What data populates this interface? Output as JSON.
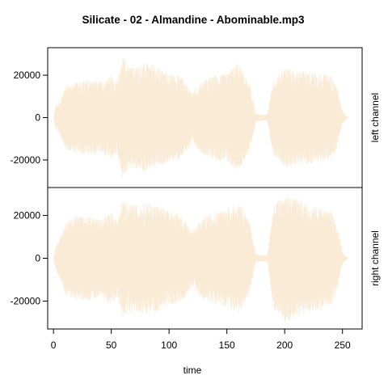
{
  "chart_data": {
    "type": "line",
    "title": "Silicate - 02 - Almandine - Abominable.mp3",
    "xlabel": "time",
    "xlim": [
      -5,
      267
    ],
    "x_ticks": [
      0,
      50,
      100,
      150,
      200,
      250
    ],
    "x_tick_labels": [
      "0",
      "50",
      "100",
      "150",
      "200",
      "250"
    ],
    "ylim": [
      -33000,
      33000
    ],
    "y_ticks": [
      -20000,
      0,
      20000
    ],
    "y_tick_labels": [
      "-20000",
      "0",
      "20000"
    ],
    "grid": false,
    "color": "#FAEBD7",
    "panels": [
      {
        "ylabel": "left channel",
        "envelope_time": [
          0,
          2,
          5,
          10,
          20,
          30,
          40,
          50,
          55,
          60,
          65,
          70,
          80,
          90,
          100,
          110,
          120,
          130,
          140,
          150,
          160,
          165,
          170,
          175,
          180,
          185,
          190,
          195,
          200,
          210,
          220,
          230,
          240,
          245,
          250,
          253,
          255
        ],
        "envelope_amp": [
          0,
          6000,
          7000,
          15000,
          17000,
          18000,
          17000,
          20000,
          17000,
          30000,
          24000,
          24000,
          26000,
          24000,
          21000,
          20000,
          12000,
          18000,
          20000,
          21000,
          26000,
          20000,
          16000,
          2000,
          1500,
          1500,
          18000,
          20000,
          24000,
          22000,
          22000,
          21000,
          20000,
          15000,
          3000,
          1000,
          0
        ]
      },
      {
        "ylabel": "right channel",
        "envelope_time": [
          0,
          2,
          5,
          10,
          20,
          30,
          40,
          50,
          55,
          60,
          65,
          70,
          80,
          90,
          100,
          110,
          120,
          130,
          140,
          150,
          160,
          165,
          170,
          175,
          180,
          185,
          190,
          195,
          200,
          210,
          220,
          230,
          240,
          245,
          250,
          253,
          255
        ],
        "envelope_amp": [
          0,
          6000,
          9000,
          17000,
          20000,
          20000,
          18000,
          22000,
          18000,
          28000,
          25000,
          25000,
          26000,
          25000,
          22000,
          21000,
          13000,
          20000,
          22000,
          23000,
          26000,
          22000,
          16000,
          2000,
          1500,
          1500,
          24000,
          27000,
          30000,
          28000,
          25000,
          24000,
          22000,
          16000,
          3000,
          1000,
          0
        ]
      }
    ]
  }
}
